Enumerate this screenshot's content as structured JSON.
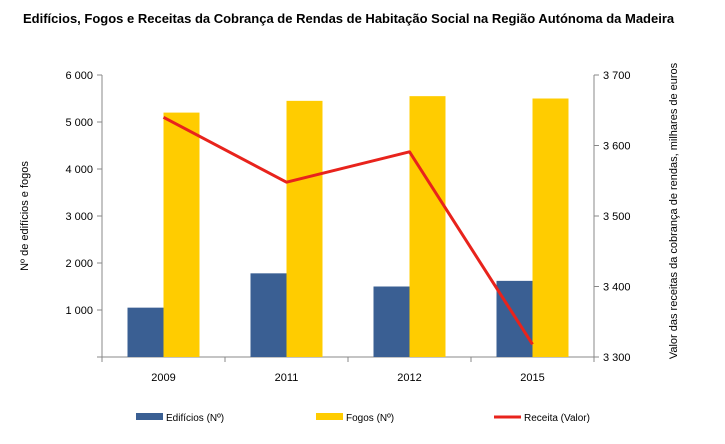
{
  "chart_data": {
    "type": "bar",
    "title": "Edifícios, Fogos e Receitas da Cobrança de Rendas de Habitação Social na Região Autónoma da Madeira",
    "categories": [
      "2009",
      "2011",
      "2012",
      "2015"
    ],
    "ylabel": "Nº de edifícios e fogos",
    "y2label": "Valor das receitas da cobrança de rendas, milhares de euros",
    "ylim": [
      0,
      6000
    ],
    "y2lim": [
      3300,
      3700
    ],
    "yticks": [
      {
        "v": 0,
        "label": ""
      },
      {
        "v": 1000,
        "label": "1 000"
      },
      {
        "v": 2000,
        "label": "2 000"
      },
      {
        "v": 3000,
        "label": "3 000"
      },
      {
        "v": 4000,
        "label": "4 000"
      },
      {
        "v": 5000,
        "label": "5 000"
      },
      {
        "v": 6000,
        "label": "6 000"
      }
    ],
    "y2ticks": [
      {
        "v": 3300,
        "label": "3 300"
      },
      {
        "v": 3400,
        "label": "3 400"
      },
      {
        "v": 3500,
        "label": "3 500"
      },
      {
        "v": 3600,
        "label": "3 600"
      },
      {
        "v": 3700,
        "label": "3 700"
      }
    ],
    "grid": false,
    "legend_position": "bottom",
    "series": [
      {
        "name": "Edifícios (Nº)",
        "type": "bar",
        "axis": "left",
        "color": "#3a5f93",
        "values": [
          1050,
          1780,
          1500,
          1620
        ]
      },
      {
        "name": "Fogos (Nº)",
        "type": "bar",
        "axis": "left",
        "color": "#ffcc00",
        "values": [
          5200,
          5450,
          5550,
          5500
        ]
      },
      {
        "name": "Receita (Valor)",
        "type": "line",
        "axis": "right",
        "color": "#e8231c",
        "values": [
          3640,
          3548,
          3591,
          3318
        ]
      }
    ]
  }
}
